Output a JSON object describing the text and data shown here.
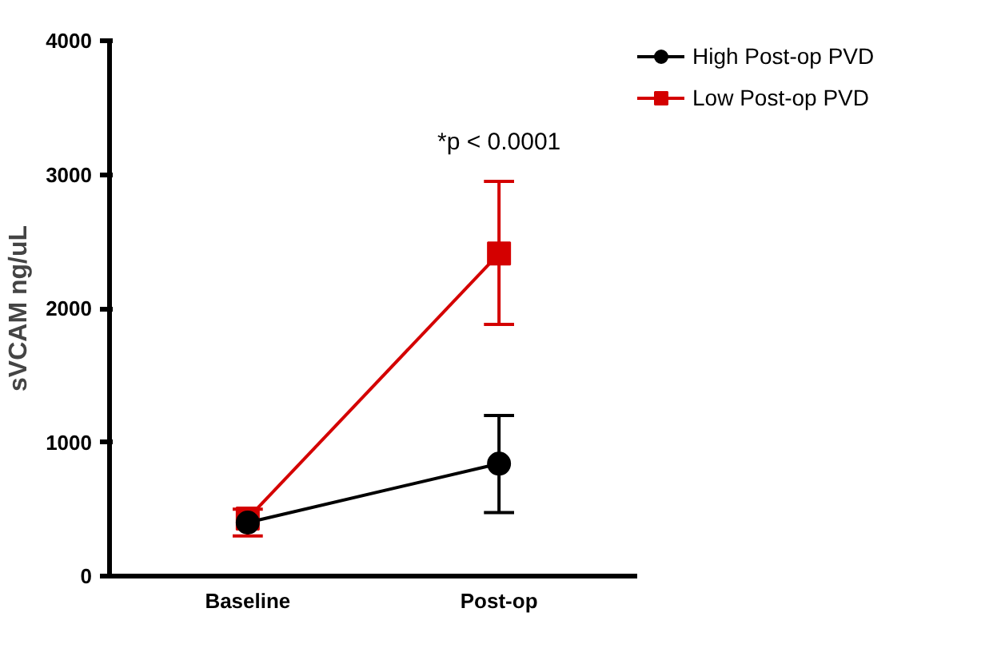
{
  "chart_data": {
    "type": "line",
    "ylabel": "sVCAM ng/uL",
    "categories": [
      "Baseline",
      "Post-op"
    ],
    "series": [
      {
        "name": "High Post-op PVD",
        "color": "#000000",
        "marker": "circle",
        "values": [
          400,
          840
        ],
        "errors": [
          null,
          [
            475,
            1200
          ]
        ]
      },
      {
        "name": "Low Post-op PVD",
        "color": "#d40000",
        "marker": "square",
        "values": [
          430,
          2410
        ],
        "errors": [
          [
            300,
            500
          ],
          [
            1880,
            2950
          ]
        ]
      }
    ],
    "ylim": [
      0,
      4000
    ],
    "yticks": [
      0,
      1000,
      2000,
      3000,
      4000
    ],
    "grid": false,
    "legend": "top right",
    "annotations": [
      "*p < 0.0001"
    ]
  }
}
